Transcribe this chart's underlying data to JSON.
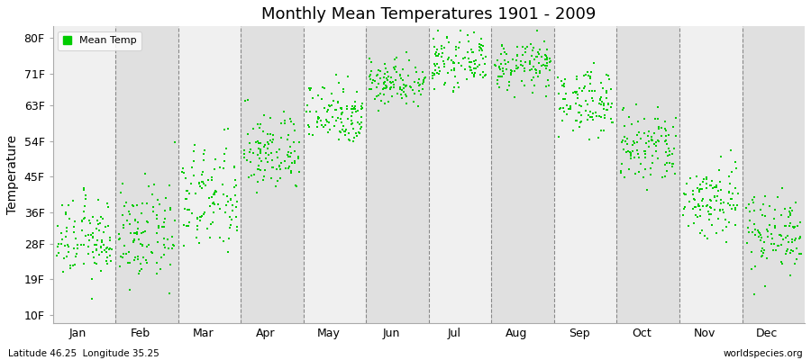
{
  "title": "Monthly Mean Temperatures 1901 - 2009",
  "ylabel": "Temperature",
  "ytick_labels": [
    "10F",
    "19F",
    "28F",
    "36F",
    "45F",
    "54F",
    "63F",
    "71F",
    "80F"
  ],
  "ytick_values": [
    10,
    19,
    28,
    36,
    45,
    54,
    63,
    71,
    80
  ],
  "months": [
    "Jan",
    "Feb",
    "Mar",
    "Apr",
    "May",
    "Jun",
    "Jul",
    "Aug",
    "Sep",
    "Oct",
    "Nov",
    "Dec"
  ],
  "dot_color": "#00cc00",
  "bg_color": "#ffffff",
  "plot_bg_color": "#f0f0f0",
  "alt_band_color": "#e0e0e0",
  "legend_label": "Mean Temp",
  "footer_left": "Latitude 46.25  Longitude 35.25",
  "footer_right": "worldspecies.org",
  "n_years": 109,
  "monthly_mean_F": [
    29,
    30,
    39,
    51,
    61,
    69,
    74,
    73,
    64,
    52,
    39,
    31
  ],
  "monthly_std_F": [
    5,
    6,
    7,
    5,
    4,
    3,
    3,
    3,
    4,
    5,
    5,
    5
  ],
  "xmin": 0,
  "xmax": 12,
  "ymin": 8,
  "ymax": 83
}
